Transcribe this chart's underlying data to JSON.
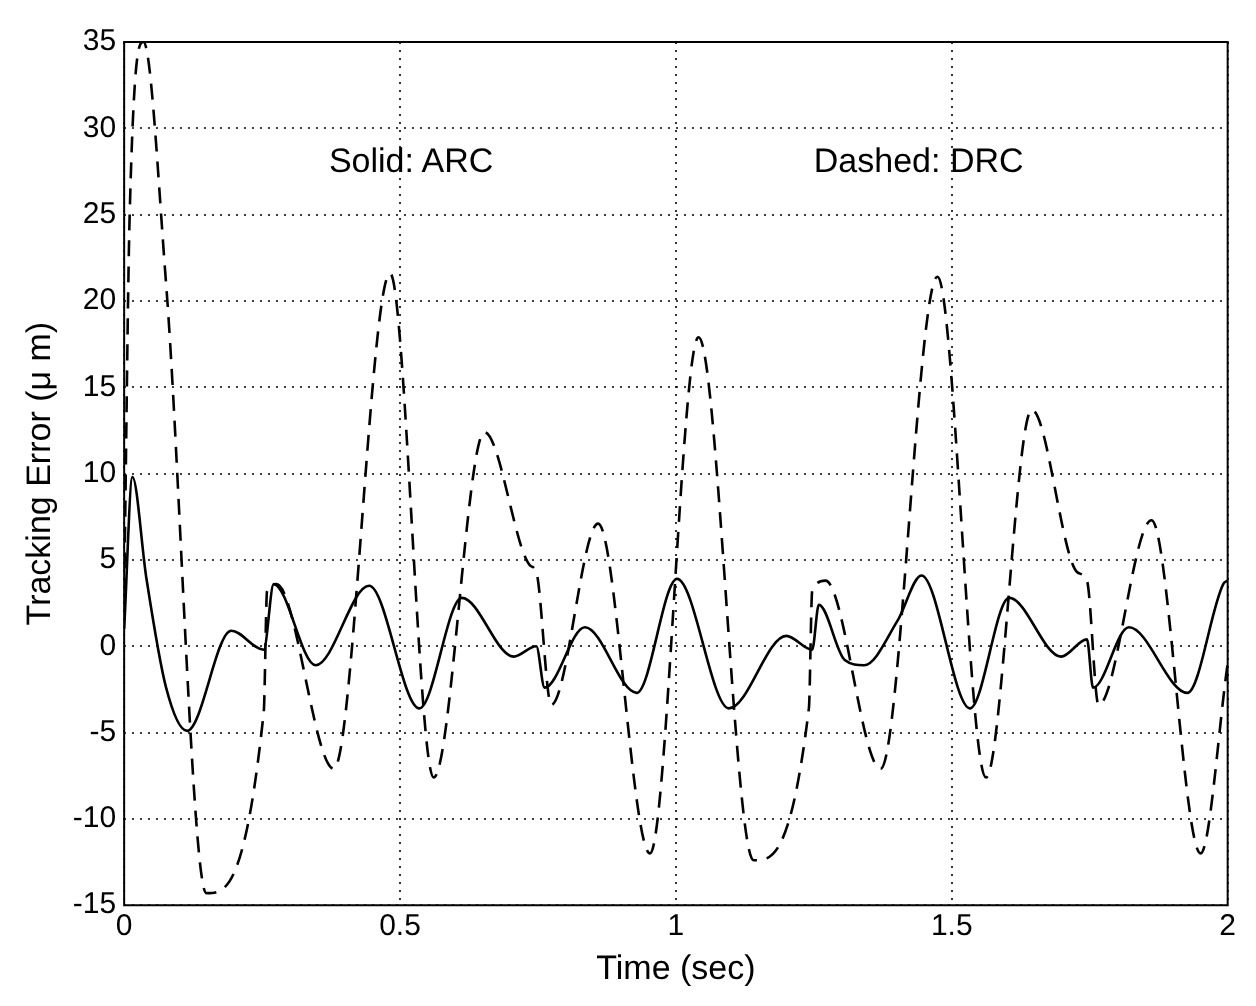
{
  "chart_data": {
    "type": "line",
    "xlabel": "Time (sec)",
    "ylabel": "Tracking Error (μ m)",
    "annotations": [
      "Solid: ARC",
      "Dashed: DRC"
    ],
    "xlim": [
      0,
      2
    ],
    "xticks": [
      0,
      0.5,
      1,
      1.5,
      2
    ],
    "ylim": [
      -15,
      35
    ],
    "yticks": [
      -15,
      -10,
      -5,
      0,
      5,
      10,
      15,
      20,
      25,
      30,
      35
    ],
    "grid": true,
    "legend": false,
    "marker": "none",
    "series": [
      {
        "color": "#000000",
        "line_style": "solid",
        "x": [
          0,
          0.015,
          0.04,
          0.076,
          0.114,
          0.194,
          0.253,
          0.271,
          0.347,
          0.444,
          0.535,
          0.612,
          0.706,
          0.747,
          0.762,
          0.835,
          0.929,
          1.002,
          1.096,
          1.2,
          1.247,
          1.259,
          1.306,
          1.341,
          1.402,
          1.445,
          1.533,
          1.604,
          1.698,
          1.745,
          1.756,
          1.821,
          1.927,
          1.992,
          2
        ],
        "values": [
          1,
          9.8,
          4,
          -2.4,
          -4.9,
          0.9,
          -0.2,
          3.6,
          -1.1,
          3.5,
          -3.6,
          2.8,
          -0.6,
          0,
          -2.4,
          1.1,
          -2.7,
          3.9,
          -3.6,
          0.6,
          -0.2,
          2.4,
          -0.8,
          -1.1,
          1.5,
          4.1,
          -3.6,
          2.8,
          -0.6,
          0.4,
          -2.4,
          1.1,
          -2.7,
          3.6,
          3.8
        ]
      },
      {
        "color": "#000000",
        "line_style": "dashed",
        "x": [
          0,
          0.01,
          0.035,
          0.076,
          0.149,
          0.253,
          0.259,
          0.276,
          0.38,
          0.482,
          0.561,
          0.653,
          0.735,
          0.747,
          0.774,
          0.859,
          0.953,
          1.041,
          1.141,
          1.241,
          1.247,
          1.271,
          1.371,
          1.474,
          1.562,
          1.645,
          1.727,
          1.745,
          1.766,
          1.862,
          1.951,
          2
        ],
        "values": [
          3,
          25,
          35,
          21,
          -14.3,
          -3.8,
          3.2,
          3.6,
          -7.1,
          21.6,
          -7.6,
          12.4,
          4.7,
          4.3,
          -3.4,
          7.1,
          -12,
          17.9,
          -12.4,
          -3.6,
          3.2,
          3.8,
          -7.1,
          21.4,
          -7.6,
          13.7,
          4.3,
          3.8,
          -3.4,
          7.3,
          -12,
          -1
        ]
      }
    ]
  }
}
